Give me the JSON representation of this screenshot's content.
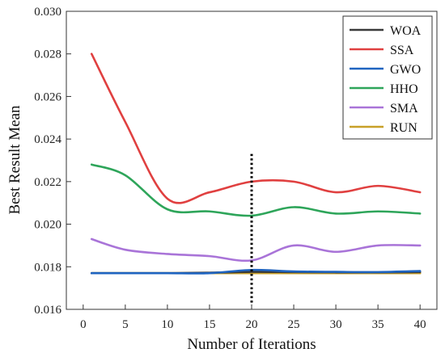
{
  "chart_data": {
    "type": "line",
    "xlabel": "Number of Iterations",
    "ylabel": "Best Result Mean",
    "xlim": [
      -2,
      42
    ],
    "ylim": [
      0.016,
      0.03
    ],
    "xticks": [
      0,
      5,
      10,
      15,
      20,
      25,
      30,
      35,
      40
    ],
    "yticks": [
      0.016,
      0.018,
      0.02,
      0.022,
      0.024,
      0.026,
      0.028,
      0.03
    ],
    "x": [
      1,
      5,
      10,
      15,
      20,
      25,
      30,
      35,
      40
    ],
    "grid": false,
    "legend_position": "top-right",
    "series": [
      {
        "name": "WOA",
        "color": "#3a3a3a",
        "values": [
          0.0177,
          0.0177,
          0.0177,
          0.01772,
          0.01776,
          0.01775,
          0.01774,
          0.01774,
          0.01775
        ]
      },
      {
        "name": "SSA",
        "color": "#e04040",
        "values": [
          0.028,
          0.0248,
          0.0212,
          0.0215,
          0.022,
          0.022,
          0.0215,
          0.0218,
          0.0215
        ]
      },
      {
        "name": "GWO",
        "color": "#1f64c0",
        "values": [
          0.0177,
          0.0177,
          0.0177,
          0.0177,
          0.01785,
          0.01778,
          0.01776,
          0.01775,
          0.0178
        ]
      },
      {
        "name": "HHO",
        "color": "#2ea55a",
        "values": [
          0.0228,
          0.0223,
          0.0207,
          0.0206,
          0.0204,
          0.0208,
          0.0205,
          0.0206,
          0.0205
        ]
      },
      {
        "name": "SMA",
        "color": "#a974d8",
        "values": [
          0.0193,
          0.0188,
          0.0186,
          0.0185,
          0.0183,
          0.019,
          0.0187,
          0.019,
          0.019
        ]
      },
      {
        "name": "RUN",
        "color": "#c8a028",
        "values": [
          0.0177,
          0.0177,
          0.0177,
          0.0177,
          0.0177,
          0.0177,
          0.0177,
          0.0177,
          0.0177
        ]
      }
    ],
    "annotations": [
      {
        "type": "vertical-dotted-line",
        "x": 20,
        "y_range": [
          0.0162,
          0.0233
        ],
        "color": "#000000"
      }
    ]
  }
}
